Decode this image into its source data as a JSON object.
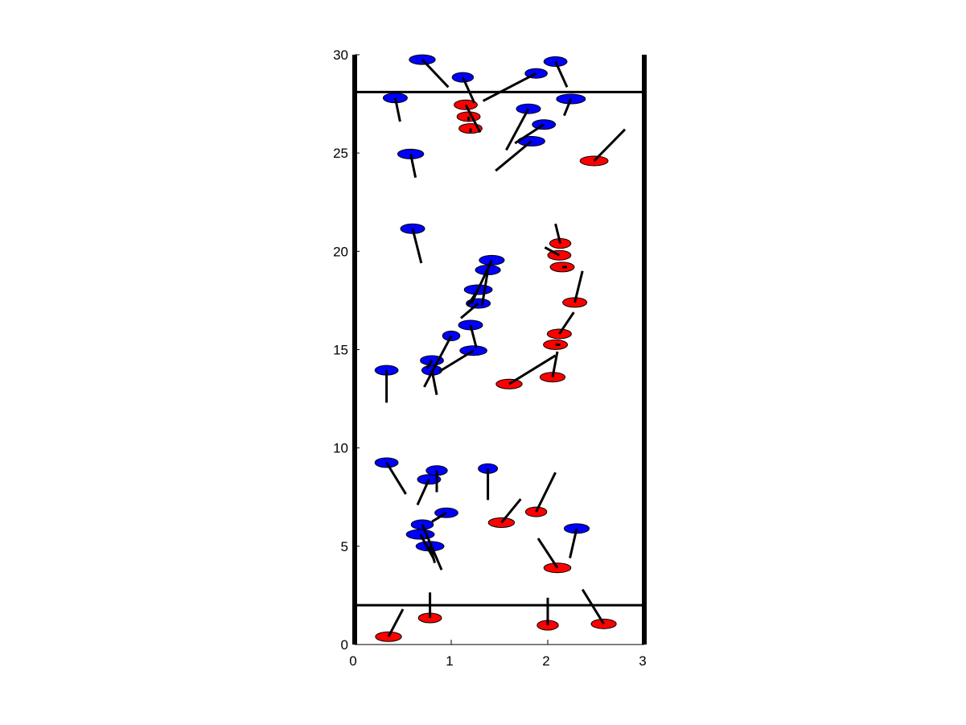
{
  "chart_data": {
    "type": "scatter",
    "title": "",
    "xlabel": "",
    "ylabel": "",
    "xlim": [
      0,
      3
    ],
    "ylim": [
      0,
      30
    ],
    "x_ticks": [
      "0",
      "1",
      "2",
      "3"
    ],
    "y_ticks": [
      "0",
      "5",
      "10",
      "15",
      "20",
      "25",
      "30"
    ],
    "x_tick_values": [
      0,
      1,
      2,
      3
    ],
    "y_tick_values": [
      0,
      5,
      10,
      15,
      20,
      25,
      30
    ],
    "grid": false,
    "horizontal_lines": [
      2,
      28.1
    ],
    "marker_style": "ellipse with black direction line",
    "colors": {
      "blue": "#0000ff",
      "red": "#ff0000",
      "line": "#000000"
    },
    "series": [
      {
        "color": "#0000ff",
        "points": [
          {
            "x": 0.7,
            "y": 29.75,
            "w": 0.27,
            "dx": 0.27,
            "dy": -1.4
          },
          {
            "x": 1.12,
            "y": 28.85,
            "w": 0.22,
            "dx": 0.12,
            "dy": -1.3
          },
          {
            "x": 2.08,
            "y": 29.65,
            "w": 0.24,
            "dx": 0.12,
            "dy": -1.3
          },
          {
            "x": 1.88,
            "y": 29.05,
            "w": 0.23,
            "dx": -0.55,
            "dy": -1.4
          },
          {
            "x": 0.42,
            "y": 27.8,
            "w": 0.25,
            "dx": 0.05,
            "dy": -1.2
          },
          {
            "x": 2.24,
            "y": 27.75,
            "w": 0.3,
            "dx": -0.07,
            "dy": -0.85
          },
          {
            "x": 1.8,
            "y": 27.25,
            "w": 0.25,
            "dx": -0.23,
            "dy": -2.1
          },
          {
            "x": 1.96,
            "y": 26.45,
            "w": 0.24,
            "dx": -0.3,
            "dy": -0.95
          },
          {
            "x": 1.83,
            "y": 25.6,
            "w": 0.28,
            "dx": -0.37,
            "dy": -1.5
          },
          {
            "x": 0.58,
            "y": 24.95,
            "w": 0.27,
            "dx": 0.05,
            "dy": -1.2
          },
          {
            "x": 0.6,
            "y": 21.15,
            "w": 0.25,
            "dx": 0.09,
            "dy": -1.75
          },
          {
            "x": 1.42,
            "y": 19.55,
            "w": 0.26,
            "dx": -0.21,
            "dy": -2.2
          },
          {
            "x": 1.38,
            "y": 19.05,
            "w": 0.26,
            "dx": -0.06,
            "dy": -1.8
          },
          {
            "x": 1.28,
            "y": 18.05,
            "w": 0.29,
            "dx": -0.11,
            "dy": -0.8
          },
          {
            "x": 1.28,
            "y": 17.35,
            "w": 0.25,
            "dx": -0.18,
            "dy": -0.75
          },
          {
            "x": 1.2,
            "y": 16.25,
            "w": 0.25,
            "dx": 0.06,
            "dy": -1.15
          },
          {
            "x": 1.0,
            "y": 15.7,
            "w": 0.18,
            "dx": -0.28,
            "dy": -2.6
          },
          {
            "x": 1.23,
            "y": 14.95,
            "w": 0.28,
            "dx": -0.35,
            "dy": -1.05
          },
          {
            "x": 0.8,
            "y": 14.45,
            "w": 0.24,
            "dx": -0.05,
            "dy": -0.4
          },
          {
            "x": 0.8,
            "y": 13.95,
            "w": 0.21,
            "dx": 0.05,
            "dy": -1.25
          },
          {
            "x": 0.33,
            "y": 13.95,
            "w": 0.24,
            "dx": 0.0,
            "dy": -1.65
          },
          {
            "x": 0.33,
            "y": 9.25,
            "w": 0.24,
            "dx": 0.2,
            "dy": -1.6
          },
          {
            "x": 0.85,
            "y": 8.85,
            "w": 0.22,
            "dx": 0.0,
            "dy": -1.1
          },
          {
            "x": 0.77,
            "y": 8.4,
            "w": 0.24,
            "dx": -0.12,
            "dy": -1.3
          },
          {
            "x": 1.38,
            "y": 8.95,
            "w": 0.2,
            "dx": 0.0,
            "dy": -1.6
          },
          {
            "x": 0.95,
            "y": 6.7,
            "w": 0.24,
            "dx": -0.15,
            "dy": -0.45
          },
          {
            "x": 0.7,
            "y": 6.1,
            "w": 0.23,
            "dx": 0.2,
            "dy": -2.3
          },
          {
            "x": 0.68,
            "y": 5.6,
            "w": 0.29,
            "dx": 0.14,
            "dy": -1.25
          },
          {
            "x": 0.78,
            "y": 5.0,
            "w": 0.29,
            "dx": 0.05,
            "dy": -0.85
          },
          {
            "x": 2.3,
            "y": 5.9,
            "w": 0.26,
            "dx": -0.07,
            "dy": -1.5
          }
        ]
      },
      {
        "color": "#ff0000",
        "points": [
          {
            "x": 1.15,
            "y": 27.45,
            "w": 0.24,
            "dx": 0.15,
            "dy": -1.4
          },
          {
            "x": 1.18,
            "y": 26.85,
            "w": 0.24,
            "dx": 0.0,
            "dy": -0.2
          },
          {
            "x": 1.2,
            "y": 26.25,
            "w": 0.24,
            "dx": 0.0,
            "dy": -0.2
          },
          {
            "x": 2.48,
            "y": 24.6,
            "w": 0.29,
            "dx": 0.32,
            "dy": 1.6
          },
          {
            "x": 2.13,
            "y": 20.4,
            "w": 0.22,
            "dx": -0.05,
            "dy": 1.0
          },
          {
            "x": 2.12,
            "y": 19.8,
            "w": 0.24,
            "dx": -0.15,
            "dy": 0.4
          },
          {
            "x": 2.15,
            "y": 19.2,
            "w": 0.25,
            "dx": 0.05,
            "dy": 0.0
          },
          {
            "x": 2.28,
            "y": 17.4,
            "w": 0.25,
            "dx": 0.08,
            "dy": 1.6
          },
          {
            "x": 2.12,
            "y": 15.8,
            "w": 0.25,
            "dx": 0.15,
            "dy": 1.1
          },
          {
            "x": 2.08,
            "y": 15.25,
            "w": 0.25,
            "dx": 0.05,
            "dy": 0.0
          },
          {
            "x": 2.05,
            "y": 13.6,
            "w": 0.26,
            "dx": 0.05,
            "dy": 1.3
          },
          {
            "x": 1.6,
            "y": 13.25,
            "w": 0.27,
            "dx": 0.48,
            "dy": 1.45
          },
          {
            "x": 1.88,
            "y": 6.75,
            "w": 0.22,
            "dx": 0.2,
            "dy": 2.0
          },
          {
            "x": 1.52,
            "y": 6.2,
            "w": 0.27,
            "dx": 0.2,
            "dy": 1.2
          },
          {
            "x": 2.1,
            "y": 3.9,
            "w": 0.28,
            "dx": -0.2,
            "dy": 1.5
          },
          {
            "x": 0.35,
            "y": 0.4,
            "w": 0.27,
            "dx": 0.15,
            "dy": 1.4
          },
          {
            "x": 0.78,
            "y": 1.35,
            "w": 0.24,
            "dx": 0.0,
            "dy": 1.3
          },
          {
            "x": 2.0,
            "y": 0.98,
            "w": 0.22,
            "dx": 0.0,
            "dy": 1.4
          },
          {
            "x": 2.58,
            "y": 1.05,
            "w": 0.26,
            "dx": -0.22,
            "dy": 1.75
          }
        ]
      }
    ]
  }
}
